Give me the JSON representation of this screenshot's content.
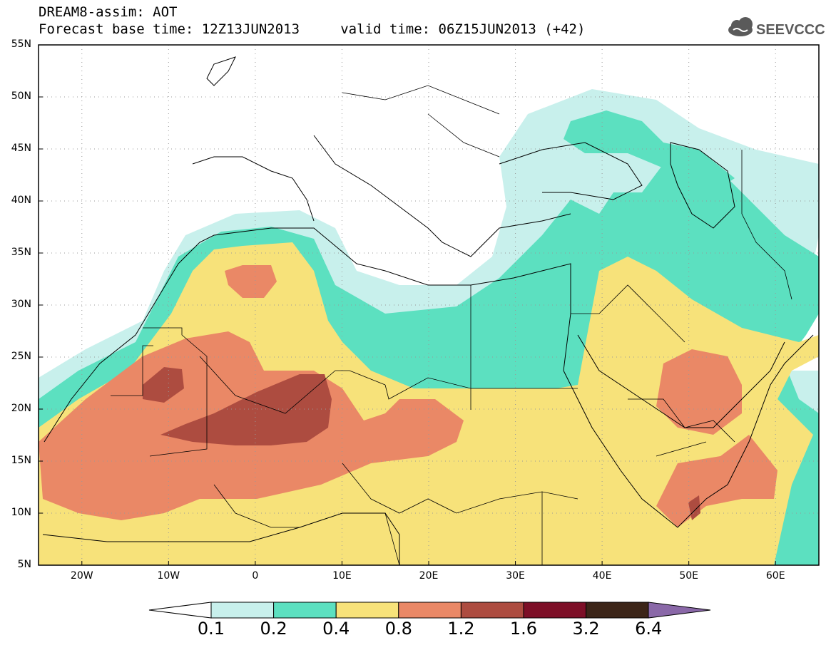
{
  "header": {
    "title": "DREAM8-assim: AOT",
    "subtitle": "Forecast base time: 12Z13JUN2013     valid time: 06Z15JUN2013 (+42)",
    "logo_text": "SEEVCCC"
  },
  "map": {
    "lat_labels": [
      "55N",
      "50N",
      "45N",
      "40N",
      "35N",
      "30N",
      "25N",
      "20N",
      "15N",
      "10N",
      "5N"
    ],
    "lon_labels": [
      "20W",
      "10W",
      "0",
      "10E",
      "20E",
      "30E",
      "40E",
      "50E",
      "60E"
    ],
    "extent": {
      "lon_min": -25,
      "lon_max": 65,
      "lat_min": 5,
      "lat_max": 55
    },
    "grid": true
  },
  "colorbar": {
    "labels": [
      "0.1",
      "0.2",
      "0.4",
      "0.8",
      "1.2",
      "1.6",
      "3.2",
      "6.4"
    ],
    "colors": [
      "#c8f0ec",
      "#5ce0c0",
      "#f7e27a",
      "#ea8866",
      "#ad4c40",
      "#7d0f27",
      "#3c2518",
      "#8a68a8"
    ],
    "under_color": "#ffffff"
  }
}
